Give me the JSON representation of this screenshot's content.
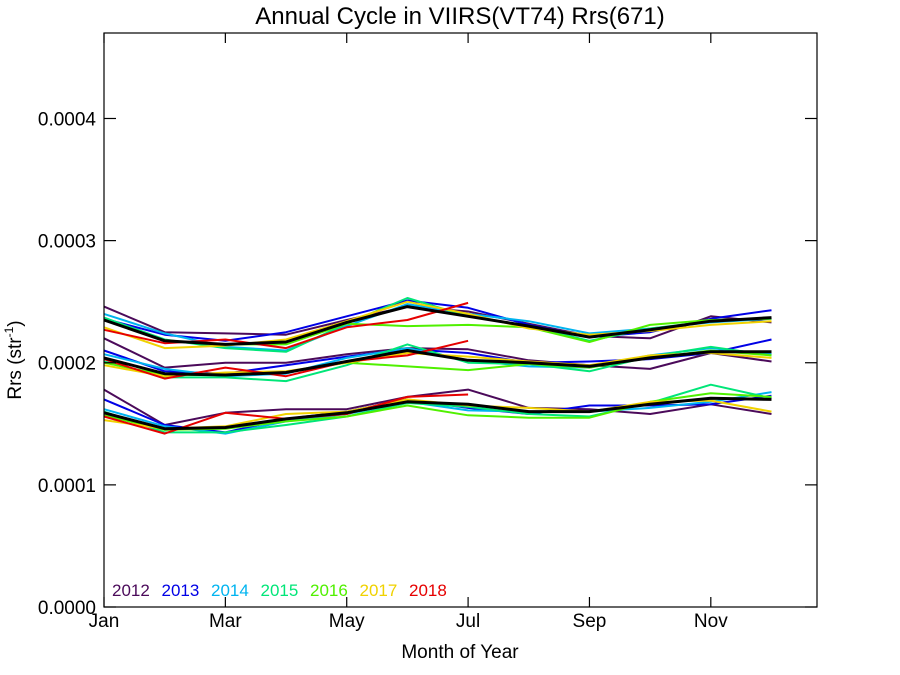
{
  "chart_data": {
    "type": "line",
    "title": "Annual Cycle in VIIRS(VT74) Rrs(671)",
    "xlabel": "Month of Year",
    "ylabel": "Rrs (str",
    "ylabel_sup": "-1",
    "ylabel_tail": ")",
    "xlim": [
      1,
      12.75
    ],
    "ylim": [
      0,
      0.00047
    ],
    "x_ticks": [
      {
        "value": 1,
        "label": "Jan"
      },
      {
        "value": 3,
        "label": "Mar"
      },
      {
        "value": 5,
        "label": "May"
      },
      {
        "value": 7,
        "label": "Jul"
      },
      {
        "value": 9,
        "label": "Sep"
      },
      {
        "value": 11,
        "label": "Nov"
      }
    ],
    "y_ticks": [
      {
        "value": 0.0,
        "label": "0.0000"
      },
      {
        "value": 0.0001,
        "label": "0.0001"
      },
      {
        "value": 0.0002,
        "label": "0.0002"
      },
      {
        "value": 0.0003,
        "label": "0.0003"
      },
      {
        "value": 0.0004,
        "label": "0.0004"
      }
    ],
    "legend": [
      {
        "label": "2012",
        "color": "#4b0a5a"
      },
      {
        "label": "2013",
        "color": "#0000e6"
      },
      {
        "label": "2014",
        "color": "#00b4f0"
      },
      {
        "label": "2015",
        "color": "#00e678"
      },
      {
        "label": "2016",
        "color": "#50f000"
      },
      {
        "label": "2017",
        "color": "#f0d200"
      },
      {
        "label": "2018",
        "color": "#e60000"
      }
    ],
    "mean_color": "#000000",
    "x": [
      1,
      2,
      3,
      4,
      5,
      6,
      7,
      8,
      9,
      10,
      11,
      12
    ],
    "groups": [
      {
        "series": [
          {
            "year": "2012",
            "values": [
              0.000246,
              0.000225,
              0.000224,
              0.000223,
              0.000235,
              0.000246,
              0.000242,
              0.000232,
              0.000222,
              0.00022,
              0.000238,
              0.000233
            ]
          },
          {
            "year": "2013",
            "values": [
              0.000236,
              0.000223,
              0.000218,
              0.000225,
              0.000238,
              0.000251,
              0.000245,
              0.000231,
              0.000221,
              0.000225,
              0.000236,
              0.000243
            ]
          },
          {
            "year": "2014",
            "values": [
              0.00024,
              0.000224,
              0.000213,
              0.00021,
              0.00023,
              0.000248,
              0.00024,
              0.000234,
              0.000224,
              0.000228,
              0.000233,
              0.000236
            ]
          },
          {
            "year": "2015",
            "values": [
              0.000237,
              0.000219,
              0.000212,
              0.000209,
              0.000232,
              0.000253,
              0.000238,
              0.00023,
              0.000218,
              0.000228,
              0.000234,
              0.000237
            ]
          },
          {
            "year": "2016",
            "values": [
              0.000235,
              0.000218,
              0.000215,
              0.000215,
              0.000232,
              0.00023,
              0.000231,
              0.000229,
              0.000217,
              0.000231,
              0.000235,
              0.000236
            ]
          },
          {
            "year": "2017",
            "values": [
              0.000229,
              0.000212,
              0.000214,
              0.000219,
              0.000234,
              0.00025,
              0.00024,
              0.000228,
              0.000223,
              0.000226,
              0.000231,
              0.000234
            ]
          },
          {
            "year": "2018",
            "values": [
              0.000227,
              0.000216,
              0.000219,
              0.000212,
              0.000229,
              0.000235,
              0.000249,
              null,
              null,
              null,
              null,
              null
            ]
          }
        ],
        "mean": [
          0.000235,
          0.000218,
          0.000215,
          0.000217,
          0.000233,
          0.000246,
          0.000238,
          0.00023,
          0.000221,
          0.000227,
          0.000234,
          0.000237
        ]
      },
      {
        "series": [
          {
            "year": "2012",
            "values": [
              0.00022,
              0.000196,
              0.0002,
              0.0002,
              0.000207,
              0.000212,
              0.000211,
              0.000202,
              0.000198,
              0.000195,
              0.000208,
              0.000201
            ]
          },
          {
            "year": "2013",
            "values": [
              0.00021,
              0.000193,
              0.000191,
              0.000198,
              0.000205,
              0.000211,
              0.000208,
              0.0002,
              0.000201,
              0.000203,
              0.000208,
              0.000219
            ]
          },
          {
            "year": "2014",
            "values": [
              0.000207,
              0.000195,
              0.000189,
              0.000191,
              0.000204,
              0.000212,
              0.000202,
              0.000197,
              0.000196,
              0.000206,
              0.000212,
              0.000207
            ]
          },
          {
            "year": "2015",
            "values": [
              0.000201,
              0.000188,
              0.000188,
              0.000185,
              0.000198,
              0.000215,
              0.0002,
              0.000199,
              0.000193,
              0.000205,
              0.000213,
              0.000206
            ]
          },
          {
            "year": "2016",
            "values": [
              0.0002,
              0.00019,
              0.00019,
              0.000192,
              0.0002,
              0.000197,
              0.000194,
              0.000199,
              0.000196,
              0.000204,
              0.00021,
              0.000206
            ]
          },
          {
            "year": "2017",
            "values": [
              0.000198,
              0.000189,
              0.000192,
              0.000193,
              0.0002,
              0.000208,
              0.000205,
              0.000201,
              0.000198,
              0.000206,
              0.000208,
              0.000204
            ]
          },
          {
            "year": "2018",
            "values": [
              0.000203,
              0.000187,
              0.000196,
              0.000189,
              0.000201,
              0.000206,
              0.000218,
              null,
              null,
              null,
              null,
              null
            ]
          }
        ],
        "mean": [
          0.000204,
          0.000191,
          0.00019,
          0.000192,
          0.000201,
          0.00021,
          0.000202,
          0.0002,
          0.000197,
          0.000204,
          0.000209,
          0.000209
        ]
      },
      {
        "series": [
          {
            "year": "2012",
            "values": [
              0.000178,
              0.000149,
              0.000159,
              0.000162,
              0.000162,
              0.000172,
              0.000178,
              0.000163,
              0.000162,
              0.000158,
              0.000166,
              0.000158
            ]
          },
          {
            "year": "2013",
            "values": [
              0.00017,
              0.000149,
              0.000143,
              0.000154,
              0.00016,
              0.00017,
              0.000163,
              0.000158,
              0.000165,
              0.000165,
              0.000166,
              0.000173
            ]
          },
          {
            "year": "2014",
            "values": [
              0.000162,
              0.000148,
              0.000142,
              0.000152,
              0.000158,
              0.000168,
              0.000161,
              0.00016,
              0.00016,
              0.000163,
              0.000168,
              0.000176
            ]
          },
          {
            "year": "2015",
            "values": [
              0.00016,
              0.000143,
              0.000143,
              0.000149,
              0.000156,
              0.000167,
              0.000164,
              0.000158,
              0.000156,
              0.000167,
              0.000182,
              0.000171
            ]
          },
          {
            "year": "2016",
            "values": [
              0.000157,
              0.000145,
              0.000146,
              0.000152,
              0.000156,
              0.000165,
              0.000157,
              0.000155,
              0.000155,
              0.000168,
              0.000175,
              0.000172
            ]
          },
          {
            "year": "2017",
            "values": [
              0.000153,
              0.000146,
              0.000148,
              0.000158,
              0.00016,
              0.00017,
              0.000165,
              0.000163,
              0.00016,
              0.000168,
              0.000169,
              0.00016
            ]
          },
          {
            "year": "2018",
            "values": [
              0.000156,
              0.000142,
              0.000159,
              0.000154,
              0.000158,
              0.000172,
              0.000174,
              null,
              null,
              null,
              null,
              null
            ]
          }
        ],
        "mean": [
          0.000159,
          0.000146,
          0.000147,
          0.000154,
          0.000159,
          0.000168,
          0.000166,
          0.00016,
          0.00016,
          0.000166,
          0.000171,
          0.00017
        ]
      }
    ]
  }
}
